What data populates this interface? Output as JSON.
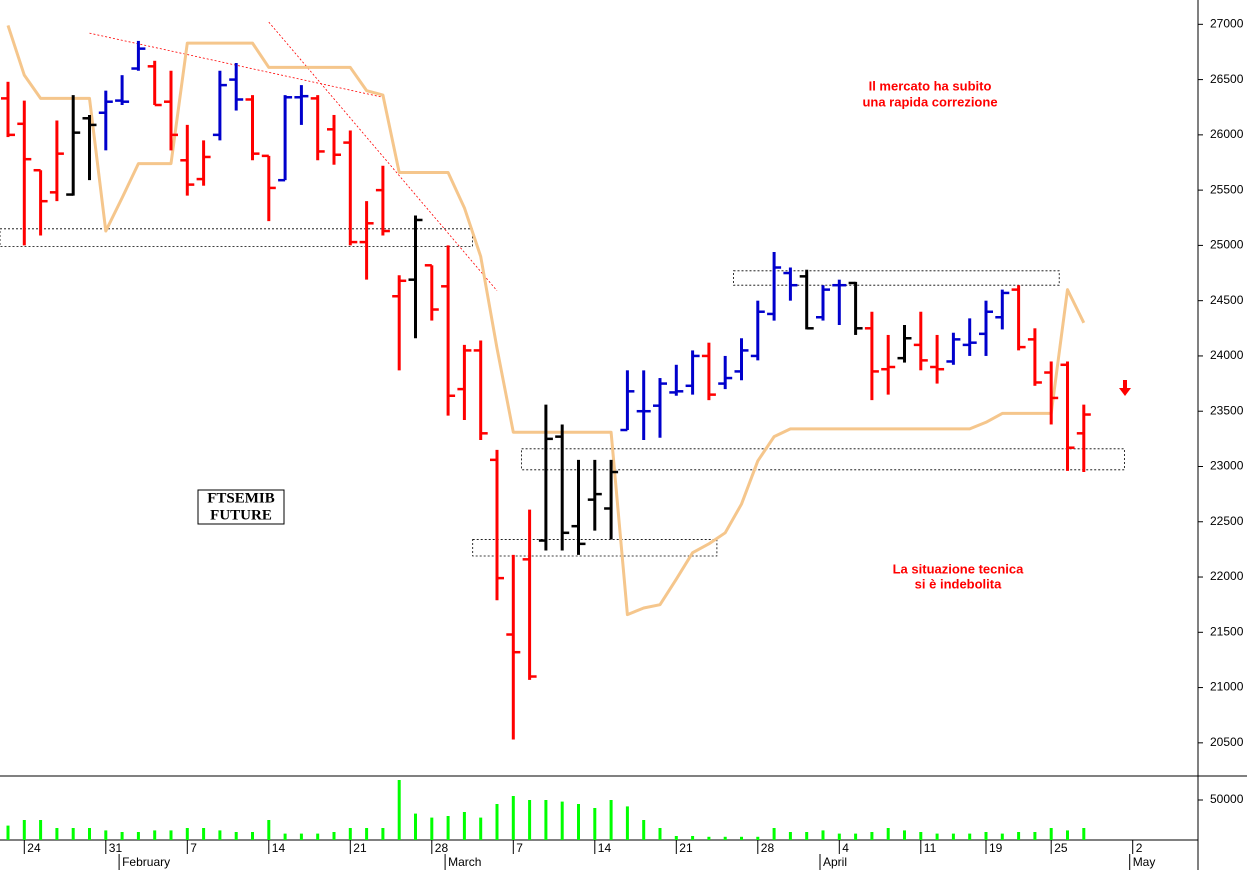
{
  "chart_data": {
    "type": "ohlc",
    "categories": [
      null,
      "24",
      null,
      null,
      null,
      null,
      "31",
      null,
      null,
      null,
      null,
      "7",
      null,
      null,
      null,
      null,
      "14",
      null,
      null,
      null,
      null,
      "21",
      null,
      null,
      null,
      null,
      "28",
      null,
      null,
      null,
      null,
      "7",
      null,
      null,
      null,
      null,
      "14",
      null,
      null,
      null,
      null,
      "21",
      null,
      null,
      null,
      null,
      "28",
      null,
      null,
      null,
      null,
      "4",
      null,
      null,
      null,
      null,
      "11",
      null,
      null,
      null,
      "19",
      null,
      null,
      null,
      "25",
      null,
      null,
      null,
      null,
      "2"
    ],
    "month_labels": [
      null,
      null,
      null,
      null,
      null,
      null,
      null,
      "February",
      null,
      null,
      null,
      null,
      null,
      null,
      null,
      null,
      null,
      null,
      null,
      null,
      null,
      null,
      null,
      null,
      null,
      null,
      null,
      "March",
      null,
      null,
      null,
      null,
      null,
      null,
      null,
      null,
      null,
      null,
      null,
      null,
      null,
      null,
      null,
      null,
      null,
      null,
      null,
      null,
      null,
      null,
      "April",
      null,
      null,
      null,
      null,
      null,
      null,
      null,
      null,
      null,
      null,
      null,
      null,
      null,
      null,
      null,
      null,
      null,
      null,
      "May"
    ],
    "open": [
      26330,
      26100,
      25680,
      25480,
      25460,
      26150,
      26200,
      26310,
      26600,
      26620,
      26300,
      25770,
      25600,
      26000,
      26500,
      26320,
      25810,
      25590,
      26340,
      26330,
      26050,
      25930,
      25030,
      25500,
      24540,
      24690,
      24820,
      24630,
      23700,
      24050,
      23060,
      21480,
      22160,
      22330,
      23270,
      22460,
      22700,
      22620,
      23330,
      23500,
      23550,
      23670,
      23730,
      24000,
      23750,
      23860,
      24000,
      24380,
      24750,
      24720,
      24350,
      24640,
      24660,
      24250,
      23880,
      23980,
      24100,
      23900,
      23950,
      24100,
      24200,
      24350,
      24600,
      24150,
      23850,
      23920,
      23300,
      null,
      null,
      null
    ],
    "high": [
      26480,
      26310,
      25680,
      26130,
      26360,
      26180,
      26400,
      26540,
      26850,
      26670,
      26580,
      26090,
      25950,
      26580,
      26650,
      26360,
      25810,
      26360,
      26450,
      26360,
      26180,
      26040,
      25400,
      25720,
      24730,
      25270,
      24820,
      25000,
      24100,
      24140,
      23150,
      22200,
      22610,
      23560,
      23380,
      23060,
      23060,
      23060,
      23870,
      23870,
      23800,
      23920,
      24050,
      24120,
      24000,
      24160,
      24500,
      24940,
      24800,
      24780,
      24640,
      24690,
      24670,
      24400,
      24190,
      24280,
      24400,
      24190,
      24210,
      24340,
      24500,
      24600,
      24640,
      24250,
      23950,
      23950,
      23560,
      null,
      null,
      null
    ],
    "low": [
      25980,
      25000,
      25090,
      25400,
      25450,
      25590,
      25860,
      26270,
      26580,
      26270,
      25860,
      25450,
      25540,
      25950,
      26220,
      25770,
      25220,
      25590,
      26090,
      25770,
      25730,
      25000,
      24690,
      25090,
      23870,
      24160,
      24320,
      23460,
      23420,
      23240,
      21790,
      20530,
      21070,
      22240,
      22240,
      22200,
      22420,
      22340,
      23330,
      23240,
      23260,
      23640,
      23650,
      23600,
      23700,
      23780,
      23960,
      24320,
      24500,
      24240,
      24320,
      24280,
      24190,
      23600,
      23650,
      23940,
      23870,
      23750,
      23920,
      24000,
      24000,
      24240,
      24050,
      23730,
      23380,
      22960,
      22950,
      null,
      null,
      null
    ],
    "close": [
      26000,
      25780,
      25400,
      25830,
      26020,
      26090,
      26300,
      26300,
      26780,
      26270,
      26000,
      25550,
      25800,
      26450,
      26320,
      25830,
      25520,
      26340,
      26350,
      25850,
      25820,
      25030,
      25200,
      25130,
      24680,
      25230,
      24420,
      23640,
      24050,
      23300,
      21990,
      21320,
      21100,
      23250,
      22400,
      22300,
      22750,
      22950,
      23680,
      23500,
      23750,
      23680,
      24000,
      23650,
      23800,
      24050,
      24400,
      24800,
      24640,
      24250,
      24600,
      24640,
      24250,
      23860,
      23900,
      24160,
      23960,
      23880,
      24150,
      24120,
      24400,
      24570,
      24080,
      23760,
      23620,
      23170,
      23470,
      null,
      null,
      null
    ],
    "bar_colors": [
      "#ff0000",
      "#ff0000",
      "#ff0000",
      "#ff0000",
      "#000000",
      "#000000",
      "#0000cc",
      "#0000cc",
      "#0000cc",
      "#ff0000",
      "#ff0000",
      "#ff0000",
      "#ff0000",
      "#0000cc",
      "#0000cc",
      "#ff0000",
      "#ff0000",
      "#0000cc",
      "#0000cc",
      "#ff0000",
      "#ff0000",
      "#ff0000",
      "#ff0000",
      "#ff0000",
      "#ff0000",
      "#000000",
      "#ff0000",
      "#ff0000",
      "#ff0000",
      "#ff0000",
      "#ff0000",
      "#ff0000",
      "#ff0000",
      "#000000",
      "#000000",
      "#000000",
      "#000000",
      "#000000",
      "#0000cc",
      "#0000cc",
      "#0000cc",
      "#0000cc",
      "#0000cc",
      "#ff0000",
      "#0000cc",
      "#0000cc",
      "#0000cc",
      "#0000cc",
      "#0000cc",
      "#000000",
      "#0000cc",
      "#0000cc",
      "#000000",
      "#ff0000",
      "#ff0000",
      "#000000",
      "#ff0000",
      "#ff0000",
      "#0000cc",
      "#0000cc",
      "#0000cc",
      "#0000cc",
      "#ff0000",
      "#ff0000",
      "#ff0000",
      "#ff0000",
      "#ff0000",
      null,
      null,
      null
    ],
    "line": {
      "color": "#f5c68c",
      "values": [
        26990,
        26540,
        26330,
        26330,
        26330,
        26330,
        25130,
        25430,
        25740,
        25740,
        25740,
        26830,
        26830,
        26830,
        26830,
        26830,
        26610,
        26610,
        26610,
        26610,
        26610,
        26610,
        26400,
        26360,
        25660,
        25660,
        25660,
        25660,
        25340,
        24900,
        24070,
        23310,
        23310,
        23310,
        23310,
        23310,
        23310,
        23310,
        21660,
        21720,
        21750,
        21980,
        22220,
        22300,
        22400,
        22660,
        23050,
        23270,
        23340,
        23340,
        23340,
        23340,
        23340,
        23340,
        23340,
        23340,
        23340,
        23340,
        23340,
        23340,
        23400,
        23480,
        23480,
        23480,
        23480,
        24600,
        24300,
        null,
        null,
        null
      ]
    },
    "ylim": [
      20200,
      27220
    ],
    "yticks": [
      20500,
      21000,
      21500,
      22000,
      22500,
      23000,
      23500,
      24000,
      24500,
      25000,
      25500,
      26000,
      26500,
      27000
    ],
    "volume": {
      "color": "#00ff00",
      "ylim": [
        0,
        80000
      ],
      "yticks": [
        50000
      ],
      "values": [
        18000,
        25000,
        25000,
        15000,
        15000,
        15000,
        12000,
        10000,
        10000,
        12000,
        12000,
        15000,
        15000,
        12000,
        10000,
        10000,
        25000,
        8000,
        8000,
        8000,
        10000,
        15000,
        15000,
        15000,
        75000,
        33000,
        28000,
        30000,
        35000,
        28000,
        45000,
        55000,
        50000,
        50000,
        48000,
        45000,
        40000,
        50000,
        42000,
        25000,
        15000,
        5000,
        5000,
        4000,
        4000,
        4000,
        4000,
        15000,
        10000,
        10000,
        12000,
        8000,
        8000,
        10000,
        15000,
        12000,
        10000,
        8000,
        8000,
        8000,
        10000,
        8000,
        10000,
        10000,
        15000,
        12000,
        15000,
        null,
        null,
        null
      ]
    },
    "zones": [
      {
        "start": 0,
        "end": 28,
        "low": 24990,
        "high": 25150
      },
      {
        "start": 45,
        "end": 64,
        "low": 24640,
        "high": 24770
      },
      {
        "start": 32,
        "end": 68,
        "low": 22970,
        "high": 23160
      },
      {
        "start": 29,
        "end": 43,
        "low": 22190,
        "high": 22340
      }
    ],
    "trendlines": [
      {
        "start": 5,
        "end": 23,
        "from": 26920,
        "to": 26340
      },
      {
        "start": 16,
        "end": 30,
        "from": 27020,
        "to": 24590
      }
    ],
    "annotations": [
      {
        "lines": [
          "Il mercato ha subito",
          "una rapida correzione"
        ]
      },
      {
        "lines": [
          "La situazione tecnica",
          "si è indebolita"
        ]
      }
    ],
    "label_box": [
      "FTSEMIB",
      "FUTURE"
    ]
  }
}
